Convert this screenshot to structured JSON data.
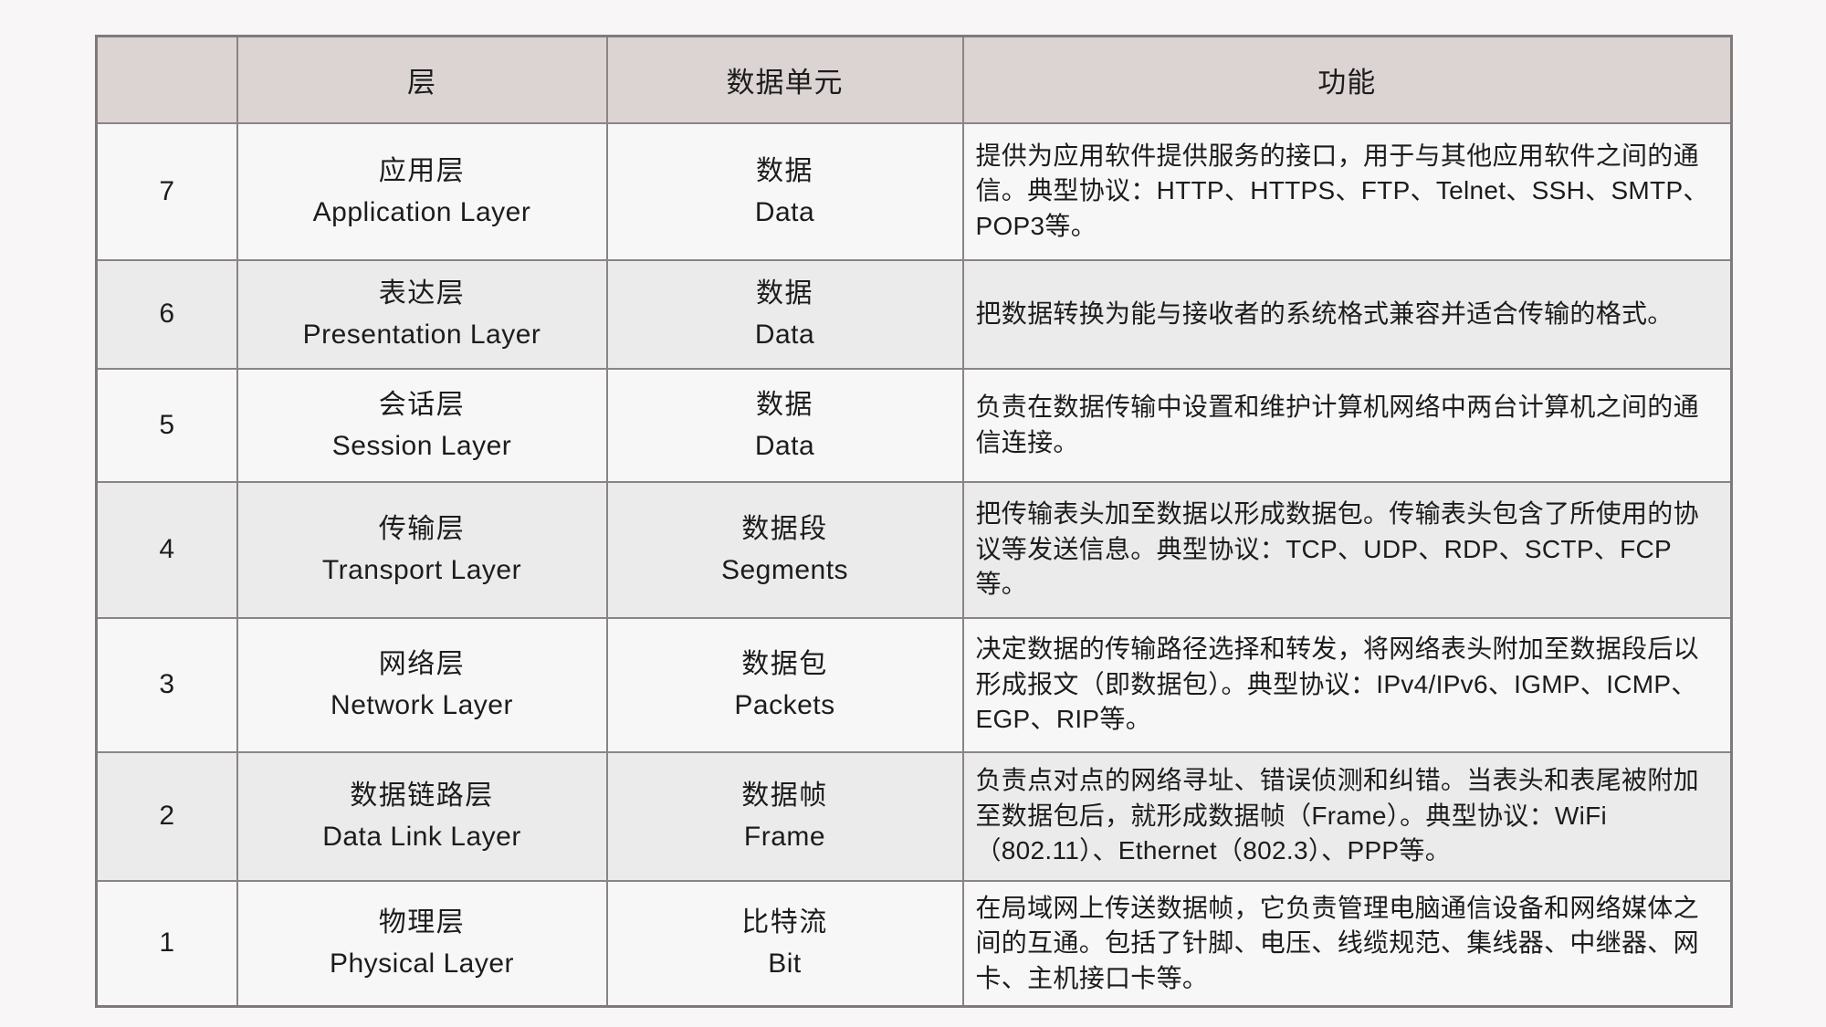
{
  "page": {
    "background_color": "#f8f6f7",
    "header_fill_color": "#dcd3d3",
    "row_even_fill_color": "#ebebeb",
    "row_odd_fill_color": "#f8f7f7",
    "border_color": "#8a8485"
  },
  "table": {
    "header": {
      "columns": [
        "",
        "层",
        "数据单元",
        "功能"
      ]
    },
    "rows": [
      {
        "number": "7",
        "layer_zh": "应用层",
        "layer_en": "Application Layer",
        "unit_zh": "数据",
        "unit_en": "Data",
        "function": "提供为应用软件提供服务的接口，用于与其他应用软件之间的通信。典型协议：HTTP、HTTPS、FTP、Telnet、SSH、SMTP、POP3等。"
      },
      {
        "number": "6",
        "layer_zh": "表达层",
        "layer_en": "Presentation Layer",
        "unit_zh": "数据",
        "unit_en": "Data",
        "function": "把数据转换为能与接收者的系统格式兼容并适合传输的格式。"
      },
      {
        "number": "5",
        "layer_zh": "会话层",
        "layer_en": "Session Layer",
        "unit_zh": "数据",
        "unit_en": "Data",
        "function": "负责在数据传输中设置和维护计算机网络中两台计算机之间的通信连接。"
      },
      {
        "number": "4",
        "layer_zh": "传输层",
        "layer_en": "Transport Layer",
        "unit_zh": "数据段",
        "unit_en": "Segments",
        "function": "把传输表头加至数据以形成数据包。传输表头包含了所使用的协议等发送信息。典型协议：TCP、UDP、RDP、SCTP、FCP等。"
      },
      {
        "number": "3",
        "layer_zh": "网络层",
        "layer_en": "Network Layer",
        "unit_zh": "数据包",
        "unit_en": "Packets",
        "function": "决定数据的传输路径选择和转发，将网络表头附加至数据段后以形成报文（即数据包）。典型协议：IPv4/IPv6、IGMP、ICMP、EGP、RIP等。"
      },
      {
        "number": "2",
        "layer_zh": "数据链路层",
        "layer_en": "Data Link Layer",
        "unit_zh": "数据帧",
        "unit_en": "Frame",
        "function": "负责点对点的网络寻址、错误侦测和纠错。当表头和表尾被附加至数据包后，就形成数据帧（Frame）。典型协议：WiFi（802.11）、Ethernet（802.3）、PPP等。"
      },
      {
        "number": "1",
        "layer_zh": "物理层",
        "layer_en": "Physical Layer",
        "unit_zh": "比特流",
        "unit_en": "Bit",
        "function": "在局域网上传送数据帧，它负责管理电脑通信设备和网络媒体之间的互通。包括了针脚、电压、线缆规范、集线器、中继器、网卡、主机接口卡等。"
      }
    ]
  }
}
